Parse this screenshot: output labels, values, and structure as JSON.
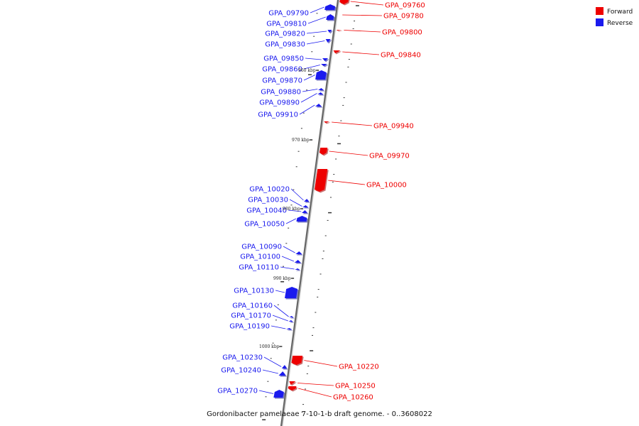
{
  "legend": [
    {
      "label": "Forward",
      "color": "#ee0000"
    },
    {
      "label": "Reverse",
      "color": "#1a1aee"
    }
  ],
  "caption": "Gordonibacter pamelaeae 7-10-1-b draft genome. - 0..3608022",
  "kbp_marks": [
    "960 kbp",
    "970 kbp",
    "980 kbp",
    "990 kbp",
    "1000 kbp"
  ],
  "reverse_genes": [
    "GPA_09790",
    "GPA_09810",
    "GPA_09820",
    "GPA_09830",
    "GPA_09850",
    "GPA_09860",
    "GPA_09870",
    "GPA_09880",
    "GPA_09890",
    "GPA_09910",
    "GPA_10020",
    "GPA_10030",
    "GPA_10040",
    "GPA_10050",
    "GPA_10090",
    "GPA_10100",
    "GPA_10110",
    "GPA_10130",
    "GPA_10160",
    "GPA_10170",
    "GPA_10190",
    "GPA_10230",
    "GPA_10240",
    "GPA_10270"
  ],
  "forward_genes": [
    "GPA_09760",
    "GPA_09780",
    "GPA_09800",
    "GPA_09840",
    "GPA_09940",
    "GPA_09970",
    "GPA_10000",
    "GPA_10220",
    "GPA_10250",
    "GPA_10260"
  ]
}
